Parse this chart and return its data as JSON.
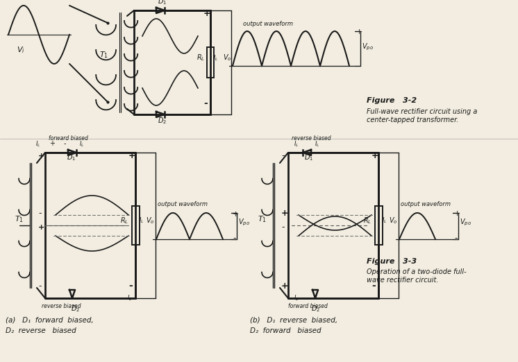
{
  "bg_color": "#f2ede0",
  "line_color": "#1a1a1a",
  "fig_width": 7.46,
  "fig_height": 5.22,
  "dpi": 100,
  "figure_caption_1": "Figure   3-2",
  "figure_caption_1b": "Full-wave rectifier circuit using a",
  "figure_caption_1c": "center-tapped transformer.",
  "figure_caption_2": "Figure   3-3",
  "figure_caption_2b": "Operation of a two-diode full-",
  "figure_caption_2c": "wave rectifier circuit.",
  "caption_a": "(a)   D₁  forward  biased,",
  "caption_a2": "D₂  reverse   biased",
  "caption_b": "(b)   D₁  reverse  biased,",
  "caption_b2": "D₂  forward   biased"
}
